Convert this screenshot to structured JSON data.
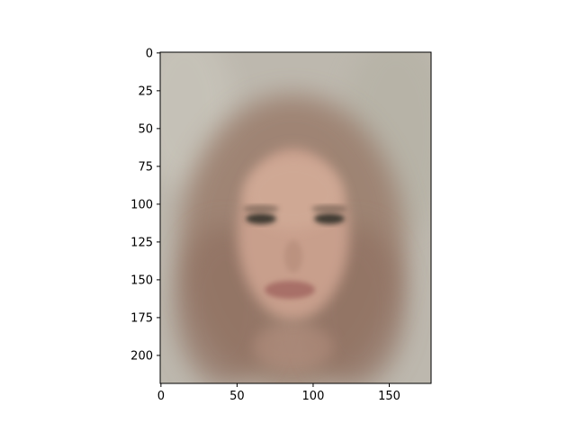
{
  "chart_data": {
    "type": "heatmap",
    "title": "",
    "xlabel": "",
    "ylabel": "",
    "x_ticks": [
      0,
      50,
      100,
      150
    ],
    "y_ticks": [
      0,
      25,
      50,
      75,
      100,
      125,
      150,
      175,
      200
    ],
    "xlim": [
      -0.5,
      177.5
    ],
    "ylim": [
      218.5,
      -0.5
    ],
    "grid": false,
    "image_description_semantic": "blurred averaged face image",
    "colors": {
      "background": "#bdb7ad",
      "face": "#c69c8a",
      "hair": "#8f6f60",
      "eyes": "#3f3a33",
      "lips": "#a86f67",
      "frame": "#000000"
    }
  }
}
